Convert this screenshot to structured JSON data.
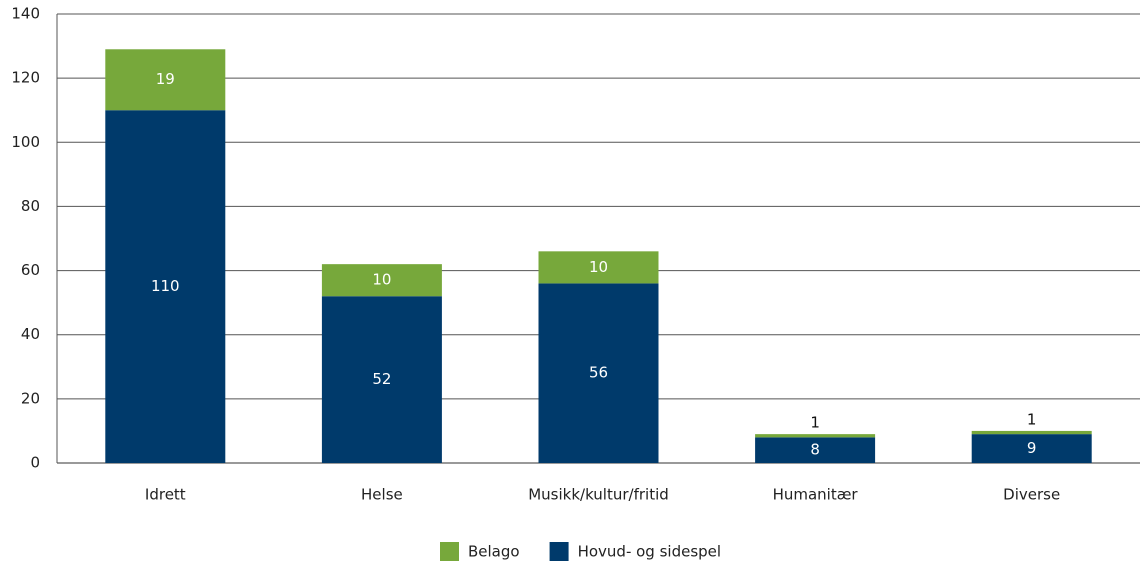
{
  "chart_data": {
    "type": "stacked_bar",
    "categories": [
      "Idrett",
      "Helse",
      "Musikk/kultur/fritid",
      "Humanitær",
      "Diverse"
    ],
    "series": [
      {
        "name": "Belago",
        "color": "#77a83b",
        "values": [
          19,
          10,
          10,
          1,
          1
        ]
      },
      {
        "name": "Hovud- og sidespel",
        "color": "#003a6b",
        "values": [
          110,
          52,
          56,
          8,
          9
        ]
      }
    ],
    "ylim": [
      0,
      140
    ],
    "yticks": [
      0,
      20,
      40,
      60,
      80,
      100,
      120,
      140
    ],
    "grid": true,
    "legend": "bottom"
  }
}
